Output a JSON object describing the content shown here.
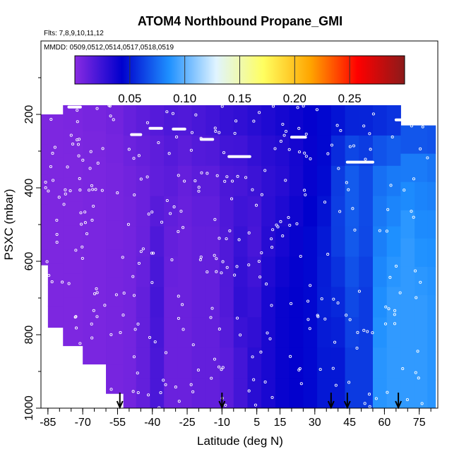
{
  "chart_data": {
    "type": "heatmap",
    "title": "ATOM4 Northbound Propane_GMI",
    "flights_label": "Flts: 7,8,9,10,11,12",
    "dates_label": "MMDD: 0509,0512,0514,0517,0518,0519",
    "xlabel": "Latitude (deg N)",
    "ylabel": "PSXC (mbar)",
    "xlim": [
      -88,
      83
    ],
    "ylim": [
      1000,
      0
    ],
    "x_ticks": [
      "-85",
      "-70",
      "-55",
      "-40",
      "-25",
      "-10",
      "5",
      "15",
      "30",
      "45",
      "60",
      "75"
    ],
    "x_tick_values": [
      -85,
      -70,
      -55,
      -40,
      -25,
      -10,
      5,
      15,
      30,
      45,
      60,
      75
    ],
    "y_ticks": [
      "200",
      "400",
      "600",
      "800",
      "1000"
    ],
    "y_tick_values": [
      200,
      400,
      600,
      800,
      1000
    ],
    "colorbar": {
      "ticks": [
        "0.05",
        "0.10",
        "0.15",
        "0.20",
        "0.25"
      ],
      "tick_values": [
        0.05,
        0.1,
        0.15,
        0.2,
        0.25
      ],
      "range": [
        0,
        0.3
      ],
      "colors": [
        "#8a2be2",
        "#0000cd",
        "#1e90ff",
        "#e0f4ff",
        "#ffff60",
        "#ffa500",
        "#ff0000",
        "#8b1a1a"
      ]
    },
    "arrow_latitudes": [
      -54,
      -10,
      37,
      44,
      66
    ],
    "columns": [
      {
        "lat": -88,
        "top": 200,
        "bottom": 610,
        "profile": [
          0.004,
          0.004,
          0.004,
          0.004,
          0.004
        ]
      },
      {
        "lat": -82,
        "top": 200,
        "bottom": 780,
        "profile": [
          0.004,
          0.004,
          0.004,
          0.004,
          0.004
        ]
      },
      {
        "lat": -75,
        "top": 175,
        "bottom": 830,
        "profile": [
          0.005,
          0.004,
          0.004,
          0.004,
          0.004
        ]
      },
      {
        "lat": -65,
        "top": 175,
        "bottom": 880,
        "profile": [
          0.006,
          0.005,
          0.005,
          0.005,
          0.005
        ]
      },
      {
        "lat": -55,
        "top": 175,
        "bottom": 960,
        "profile": [
          0.008,
          0.006,
          0.006,
          0.006,
          0.006
        ]
      },
      {
        "lat": -50,
        "top": 175,
        "bottom": 1000,
        "profile": [
          0.012,
          0.008,
          0.007,
          0.007,
          0.007
        ]
      },
      {
        "lat": -44,
        "top": 175,
        "bottom": 1000,
        "profile": [
          0.015,
          0.01,
          0.01,
          0.012,
          0.012
        ]
      },
      {
        "lat": -38,
        "top": 175,
        "bottom": 1000,
        "profile": [
          0.018,
          0.012,
          0.018,
          0.022,
          0.02
        ]
      },
      {
        "lat": -32,
        "top": 175,
        "bottom": 1000,
        "profile": [
          0.02,
          0.015,
          0.012,
          0.01,
          0.01
        ]
      },
      {
        "lat": -26,
        "top": 175,
        "bottom": 1000,
        "profile": [
          0.02,
          0.012,
          0.01,
          0.01,
          0.01
        ]
      },
      {
        "lat": -20,
        "top": 175,
        "bottom": 1000,
        "profile": [
          0.022,
          0.015,
          0.012,
          0.012,
          0.012
        ]
      },
      {
        "lat": -14,
        "top": 175,
        "bottom": 1000,
        "profile": [
          0.025,
          0.015,
          0.012,
          0.012,
          0.012
        ]
      },
      {
        "lat": -8,
        "top": 175,
        "bottom": 1000,
        "profile": [
          0.028,
          0.02,
          0.018,
          0.018,
          0.015
        ]
      },
      {
        "lat": -2,
        "top": 175,
        "bottom": 1000,
        "profile": [
          0.03,
          0.02,
          0.025,
          0.028,
          0.022
        ]
      },
      {
        "lat": 4,
        "top": 175,
        "bottom": 1000,
        "profile": [
          0.032,
          0.025,
          0.02,
          0.025,
          0.03
        ]
      },
      {
        "lat": 10,
        "top": 175,
        "bottom": 1000,
        "profile": [
          0.035,
          0.028,
          0.03,
          0.035,
          0.035
        ]
      },
      {
        "lat": 16,
        "top": 175,
        "bottom": 1000,
        "profile": [
          0.038,
          0.03,
          0.035,
          0.04,
          0.04
        ]
      },
      {
        "lat": 22,
        "top": 175,
        "bottom": 1000,
        "profile": [
          0.04,
          0.035,
          0.04,
          0.042,
          0.042
        ]
      },
      {
        "lat": 28,
        "top": 175,
        "bottom": 1000,
        "profile": [
          0.042,
          0.04,
          0.045,
          0.045,
          0.045
        ]
      },
      {
        "lat": 34,
        "top": 175,
        "bottom": 1000,
        "profile": [
          0.045,
          0.045,
          0.05,
          0.052,
          0.05
        ]
      },
      {
        "lat": 40,
        "top": 175,
        "bottom": 1000,
        "profile": [
          0.045,
          0.06,
          0.062,
          0.055,
          0.05
        ]
      },
      {
        "lat": 46,
        "top": 175,
        "bottom": 1000,
        "profile": [
          0.048,
          0.07,
          0.07,
          0.065,
          0.06
        ]
      },
      {
        "lat": 52,
        "top": 175,
        "bottom": 1000,
        "profile": [
          0.05,
          0.065,
          0.065,
          0.06,
          0.06
        ]
      },
      {
        "lat": 58,
        "top": 175,
        "bottom": 1000,
        "profile": [
          0.05,
          0.075,
          0.08,
          0.085,
          0.088
        ]
      },
      {
        "lat": 64,
        "top": 175,
        "bottom": 1000,
        "profile": [
          0.052,
          0.078,
          0.085,
          0.09,
          0.09
        ]
      },
      {
        "lat": 70,
        "top": 230,
        "bottom": 1000,
        "profile": [
          0.055,
          0.08,
          0.09,
          0.09,
          0.09
        ]
      },
      {
        "lat": 76,
        "top": 230,
        "bottom": 1000,
        "profile": [
          0.055,
          0.08,
          0.085,
          0.09,
          0.09
        ]
      },
      {
        "lat": 81,
        "top": 230,
        "bottom": 1000,
        "profile": [
          0.055,
          0.078,
          0.085,
          0.088,
          0.088
        ]
      }
    ],
    "flight_tracks": [
      {
        "lat0": -76,
        "lat1": -71,
        "p": 180
      },
      {
        "lat0": -49,
        "lat1": -45,
        "p": 255
      },
      {
        "lat0": -41,
        "lat1": -36,
        "p": 238
      },
      {
        "lat0": -31,
        "lat1": -26,
        "p": 240
      },
      {
        "lat0": -19,
        "lat1": -14,
        "p": 268
      },
      {
        "lat0": -7,
        "lat1": 2,
        "p": 315
      },
      {
        "lat0": 20,
        "lat1": 26,
        "p": 262
      },
      {
        "lat0": 44,
        "lat1": 55,
        "p": 330
      },
      {
        "lat0": 65,
        "lat1": 71,
        "p": 215
      }
    ]
  }
}
